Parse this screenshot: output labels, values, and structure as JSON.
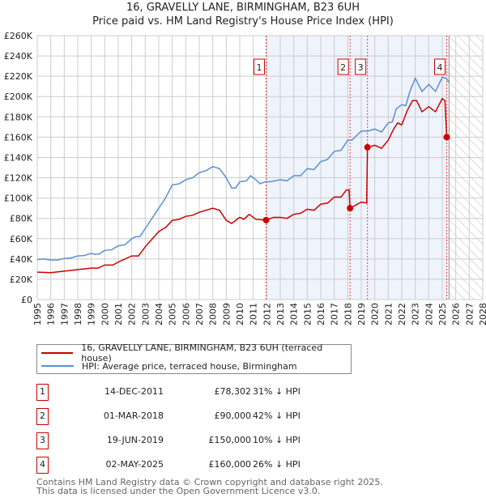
{
  "chart_data": {
    "type": "line",
    "title": "16, GRAVELLY LANE, BIRMINGHAM, B23 6UH",
    "subtitle": "Price paid vs. HM Land Registry's House Price Index (HPI)",
    "xlim": [
      1995,
      2028
    ],
    "ylim": [
      0,
      260000
    ],
    "x_ticks": [
      "1995",
      "1996",
      "1997",
      "1998",
      "1999",
      "2000",
      "2001",
      "2002",
      "2003",
      "2004",
      "2005",
      "2006",
      "2007",
      "2008",
      "2009",
      "2010",
      "2011",
      "2012",
      "2013",
      "2014",
      "2015",
      "2016",
      "2017",
      "2018",
      "2019",
      "2020",
      "2021",
      "2022",
      "2023",
      "2024",
      "2025",
      "2026",
      "2027",
      "2028"
    ],
    "y_ticks": [
      {
        "v": 0,
        "l": "£0"
      },
      {
        "v": 20000,
        "l": "£20K"
      },
      {
        "v": 40000,
        "l": "£40K"
      },
      {
        "v": 60000,
        "l": "£60K"
      },
      {
        "v": 80000,
        "l": "£80K"
      },
      {
        "v": 100000,
        "l": "£100K"
      },
      {
        "v": 120000,
        "l": "£120K"
      },
      {
        "v": 140000,
        "l": "£140K"
      },
      {
        "v": 160000,
        "l": "£160K"
      },
      {
        "v": 180000,
        "l": "£180K"
      },
      {
        "v": 200000,
        "l": "£200K"
      },
      {
        "v": 220000,
        "l": "£220K"
      },
      {
        "v": 240000,
        "l": "£240K"
      },
      {
        "v": 260000,
        "l": "£260K"
      }
    ],
    "grid": true,
    "shaded_range": [
      2011.95,
      2025.33
    ],
    "forecast_hatch_from": 2025.5,
    "series": [
      {
        "name": "16, GRAVELLY LANE, BIRMINGHAM, B23 6UH (terraced house)",
        "color": "#cc0000",
        "points": [
          [
            1995,
            27
          ],
          [
            1996,
            26.5
          ],
          [
            1997,
            28
          ],
          [
            1998,
            29.5
          ],
          [
            1999,
            31
          ],
          [
            1999.5,
            31
          ],
          [
            2000,
            34
          ],
          [
            2000.6,
            34
          ],
          [
            2001,
            37
          ],
          [
            2002,
            43
          ],
          [
            2002.5,
            43
          ],
          [
            2003,
            52
          ],
          [
            2004,
            67
          ],
          [
            2004.5,
            71
          ],
          [
            2005,
            78
          ],
          [
            2005.5,
            79
          ],
          [
            2006,
            82
          ],
          [
            2006.5,
            83
          ],
          [
            2007,
            86
          ],
          [
            2008,
            90
          ],
          [
            2008.5,
            88
          ],
          [
            2009,
            78
          ],
          [
            2009.4,
            75
          ],
          [
            2010,
            81
          ],
          [
            2010.3,
            79
          ],
          [
            2010.7,
            84
          ],
          [
            2011.2,
            79
          ],
          [
            2011.95,
            78.3
          ],
          [
            2012.5,
            81
          ],
          [
            2013,
            81
          ],
          [
            2013.5,
            80
          ],
          [
            2014,
            84
          ],
          [
            2014.5,
            85
          ],
          [
            2015,
            89
          ],
          [
            2015.5,
            88
          ],
          [
            2016,
            94
          ],
          [
            2016.5,
            95
          ],
          [
            2017,
            101
          ],
          [
            2017.5,
            101
          ],
          [
            2017.9,
            108
          ],
          [
            2018.1,
            108
          ],
          [
            2018.17,
            90
          ],
          [
            2019,
            96
          ],
          [
            2019.4,
            95
          ],
          [
            2019.46,
            150
          ],
          [
            2020,
            152
          ],
          [
            2020.5,
            149
          ],
          [
            2021,
            157
          ],
          [
            2021.4,
            168
          ],
          [
            2021.7,
            174
          ],
          [
            2022,
            172
          ],
          [
            2022.4,
            186
          ],
          [
            2022.8,
            196
          ],
          [
            2023.1,
            196
          ],
          [
            2023.5,
            185
          ],
          [
            2024,
            190
          ],
          [
            2024.5,
            185
          ],
          [
            2025,
            198
          ],
          [
            2025.2,
            196
          ],
          [
            2025.33,
            160
          ]
        ]
      },
      {
        "name": "HPI: Average price, terraced house, Birmingham",
        "color": "#5b8fd4",
        "points": [
          [
            1995,
            39.5
          ],
          [
            1995.5,
            40
          ],
          [
            1996,
            39
          ],
          [
            1996.5,
            39
          ],
          [
            1997,
            40.5
          ],
          [
            1997.5,
            41
          ],
          [
            1998,
            43
          ],
          [
            1998.5,
            43.5
          ],
          [
            1999,
            45.5
          ],
          [
            1999.3,
            44.5
          ],
          [
            1999.6,
            45
          ],
          [
            2000,
            48.5
          ],
          [
            2000.5,
            49
          ],
          [
            2001,
            53
          ],
          [
            2001.5,
            54
          ],
          [
            2002,
            60
          ],
          [
            2002.3,
            62
          ],
          [
            2002.6,
            62
          ],
          [
            2003,
            70
          ],
          [
            2003.5,
            80
          ],
          [
            2004,
            90
          ],
          [
            2004.5,
            100
          ],
          [
            2005,
            113
          ],
          [
            2005.5,
            114
          ],
          [
            2006,
            118
          ],
          [
            2006.5,
            120
          ],
          [
            2007,
            125
          ],
          [
            2007.5,
            127
          ],
          [
            2008,
            131
          ],
          [
            2008.5,
            129
          ],
          [
            2009,
            120
          ],
          [
            2009.4,
            110
          ],
          [
            2009.7,
            110
          ],
          [
            2010,
            116
          ],
          [
            2010.5,
            117
          ],
          [
            2010.8,
            122
          ],
          [
            2011.2,
            118
          ],
          [
            2011.5,
            114
          ],
          [
            2011.9,
            116
          ],
          [
            2012.2,
            116
          ],
          [
            2012.6,
            117
          ],
          [
            2013,
            118
          ],
          [
            2013.5,
            117
          ],
          [
            2014,
            122
          ],
          [
            2014.5,
            122
          ],
          [
            2015,
            129
          ],
          [
            2015.5,
            128
          ],
          [
            2016,
            136
          ],
          [
            2016.5,
            138
          ],
          [
            2017,
            146
          ],
          [
            2017.5,
            147
          ],
          [
            2018,
            157
          ],
          [
            2018.3,
            157
          ],
          [
            2019,
            166
          ],
          [
            2019.5,
            166
          ],
          [
            2020,
            168
          ],
          [
            2020.5,
            165
          ],
          [
            2021,
            174
          ],
          [
            2021.3,
            175
          ],
          [
            2021.6,
            188
          ],
          [
            2022,
            192
          ],
          [
            2022.3,
            191
          ],
          [
            2022.6,
            205
          ],
          [
            2023,
            218
          ],
          [
            2023.5,
            205
          ],
          [
            2024,
            212
          ],
          [
            2024.5,
            205
          ],
          [
            2025,
            219
          ],
          [
            2025.3,
            218
          ],
          [
            2025.5,
            214
          ]
        ]
      }
    ],
    "sales": [
      {
        "n": "1",
        "x": 2011.95,
        "price": 78302,
        "date": "14-DEC-2011",
        "price_label": "£78,302",
        "hpi": "31% ↓ HPI"
      },
      {
        "n": "2",
        "x": 2018.17,
        "price": 90000,
        "date": "01-MAR-2018",
        "price_label": "£90,000",
        "hpi": "42% ↓ HPI"
      },
      {
        "n": "3",
        "x": 2019.46,
        "price": 150000,
        "date": "19-JUN-2019",
        "price_label": "£150,000",
        "hpi": "10% ↓ HPI"
      },
      {
        "n": "4",
        "x": 2025.33,
        "price": 160000,
        "date": "02-MAY-2025",
        "price_label": "£160,000",
        "hpi": "26% ↓ HPI"
      }
    ]
  },
  "footer": {
    "line1": "Contains HM Land Registry data © Crown copyright and database right 2025.",
    "line2": "This data is licensed under the Open Government Licence v3.0."
  }
}
